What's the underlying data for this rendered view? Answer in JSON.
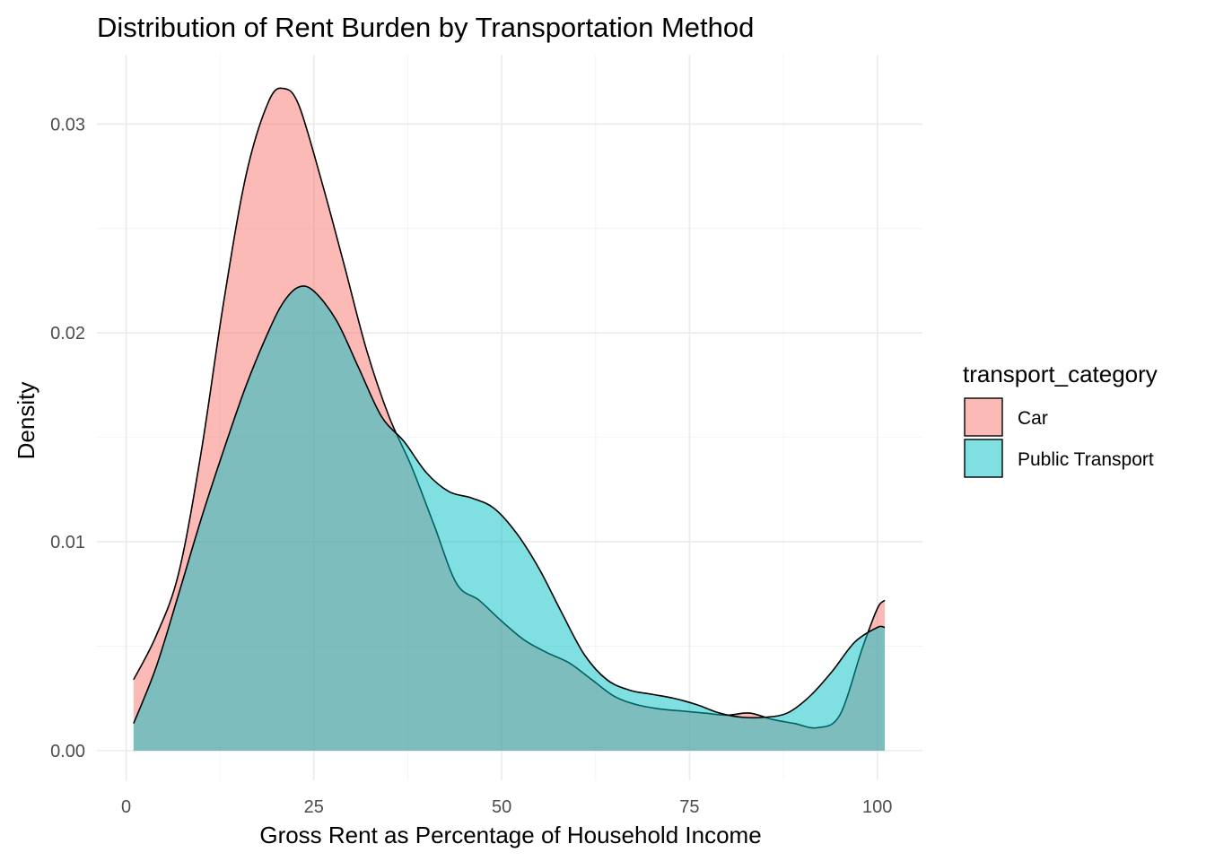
{
  "chart_data": {
    "type": "area",
    "title": "Distribution of Rent Burden by Transportation Method",
    "xlabel": "Gross Rent as Percentage of Household Income",
    "ylabel": "Density",
    "xlim": [
      1,
      101
    ],
    "ylim": [
      0,
      0.032
    ],
    "x_ticks": [
      0,
      25,
      50,
      75,
      100
    ],
    "x_tick_labels": [
      "0",
      "25",
      "50",
      "75",
      "100"
    ],
    "y_ticks": [
      0,
      0.01,
      0.02,
      0.03
    ],
    "y_tick_labels": [
      "0.00",
      "0.01",
      "0.02",
      "0.03"
    ],
    "grid": true,
    "legend": {
      "title": "transport_category",
      "placement": "right"
    },
    "series": [
      {
        "name": "Car",
        "color": "#F8766D",
        "x": [
          1,
          4,
          7,
          10,
          13,
          16,
          19,
          21,
          23,
          26,
          29,
          32,
          35,
          38,
          41,
          44,
          47,
          50,
          53,
          56,
          59,
          62,
          65,
          68,
          71,
          74,
          77,
          80,
          83,
          86,
          89,
          92,
          95,
          98,
          100,
          101
        ],
        "values": [
          0.0034,
          0.0055,
          0.0085,
          0.0143,
          0.0215,
          0.0276,
          0.0311,
          0.0317,
          0.0309,
          0.0273,
          0.0233,
          0.0192,
          0.016,
          0.0136,
          0.0108,
          0.008,
          0.0072,
          0.0062,
          0.0053,
          0.0047,
          0.0042,
          0.0034,
          0.0026,
          0.0022,
          0.002,
          0.0019,
          0.0018,
          0.0017,
          0.0018,
          0.0015,
          0.0013,
          0.0011,
          0.0017,
          0.0049,
          0.0068,
          0.0072
        ]
      },
      {
        "name": "Public Transport",
        "color": "#00BFC4",
        "x": [
          1,
          4,
          7,
          10,
          13,
          16,
          19,
          21,
          23,
          25,
          28,
          31,
          34,
          37,
          40,
          43,
          46,
          49,
          52,
          55,
          58,
          61,
          64,
          67,
          70,
          73,
          76,
          79,
          82,
          85,
          88,
          91,
          94,
          97,
          100,
          101
        ],
        "values": [
          0.0013,
          0.004,
          0.0075,
          0.0111,
          0.0144,
          0.0175,
          0.0201,
          0.0215,
          0.0222,
          0.022,
          0.0206,
          0.0183,
          0.016,
          0.0148,
          0.0133,
          0.0124,
          0.0121,
          0.0116,
          0.0104,
          0.0087,
          0.0066,
          0.0046,
          0.0034,
          0.0029,
          0.0027,
          0.0025,
          0.0022,
          0.0018,
          0.0016,
          0.0016,
          0.0018,
          0.0026,
          0.0038,
          0.0052,
          0.0059,
          0.0059
        ]
      }
    ]
  }
}
